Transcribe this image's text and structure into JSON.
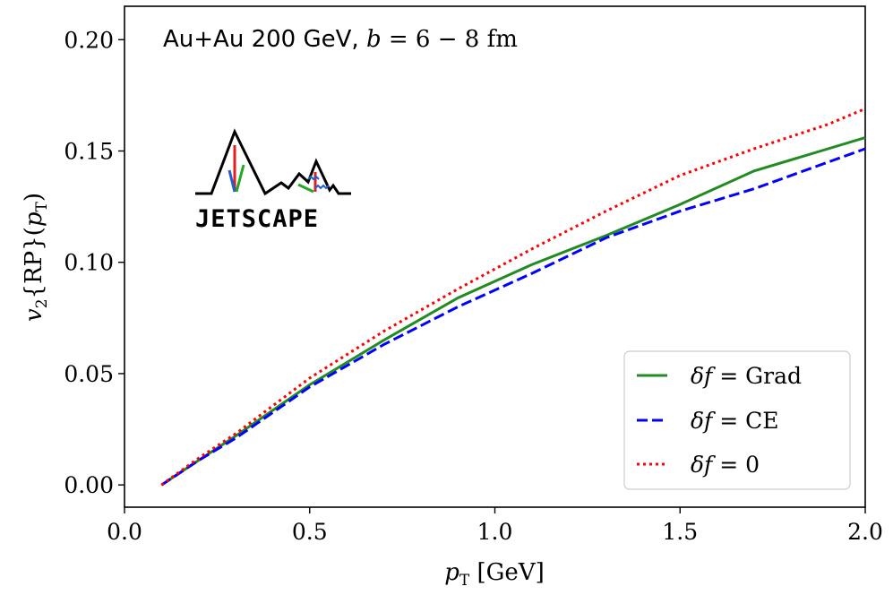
{
  "chart_data": {
    "type": "line",
    "title": "Au+Au 200 GeV, b = 6 − 8 fm",
    "title_parts": {
      "system": "Au+Au 200 GeV, ",
      "param": "b",
      "equals": " = 6 − 8 fm"
    },
    "xlabel": "p_T [GeV]",
    "xlabel_parts": {
      "main": "p",
      "sub": "T",
      "unit": " [GeV]"
    },
    "ylabel": "v_2{RP}(p_T)",
    "ylabel_parts": {
      "v": "v",
      "vsub": "2",
      "rp": "{RP}(",
      "p": "p",
      "psub": "T",
      "close": ")"
    },
    "xlim": [
      0.0,
      2.0
    ],
    "ylim": [
      -0.01,
      0.215
    ],
    "xticks": [
      0.0,
      0.5,
      1.0,
      1.5,
      2.0
    ],
    "xtick_labels": [
      "0.0",
      "0.5",
      "1.0",
      "1.5",
      "2.0"
    ],
    "yticks": [
      0.0,
      0.05,
      0.1,
      0.15,
      0.2
    ],
    "ytick_labels": [
      "0.00",
      "0.05",
      "0.10",
      "0.15",
      "0.20"
    ],
    "grid": false,
    "legend_position": "bottom-right",
    "logo_text": "JETSCAPE",
    "series": [
      {
        "name": "δf = Grad",
        "label_parts": {
          "delta": "δf",
          "rest": " = Grad"
        },
        "color": "#228b22",
        "style": "solid",
        "x": [
          0.1,
          0.2,
          0.3,
          0.5,
          0.7,
          0.9,
          1.1,
          1.3,
          1.5,
          1.7,
          1.9,
          2.0
        ],
        "y": [
          0.0,
          0.011,
          0.022,
          0.045,
          0.065,
          0.084,
          0.099,
          0.112,
          0.126,
          0.141,
          0.151,
          0.156
        ]
      },
      {
        "name": "δf = CE",
        "label_parts": {
          "delta": "δf",
          "rest": " = CE"
        },
        "color": "#0000ff",
        "style": "dashed",
        "x": [
          0.1,
          0.2,
          0.3,
          0.5,
          0.7,
          0.9,
          1.1,
          1.3,
          1.5,
          1.7,
          1.9,
          2.0
        ],
        "y": [
          0.0,
          0.011,
          0.021,
          0.044,
          0.063,
          0.08,
          0.095,
          0.111,
          0.123,
          0.133,
          0.145,
          0.151
        ]
      },
      {
        "name": "δf = 0",
        "label_parts": {
          "delta": "δf",
          "rest": " = 0"
        },
        "color": "#ff0000",
        "style": "dotted",
        "x": [
          0.1,
          0.2,
          0.3,
          0.5,
          0.7,
          0.9,
          1.1,
          1.3,
          1.5,
          1.7,
          1.9,
          2.0
        ],
        "y": [
          0.0,
          0.012,
          0.023,
          0.048,
          0.069,
          0.088,
          0.106,
          0.123,
          0.139,
          0.151,
          0.162,
          0.169
        ]
      }
    ]
  }
}
